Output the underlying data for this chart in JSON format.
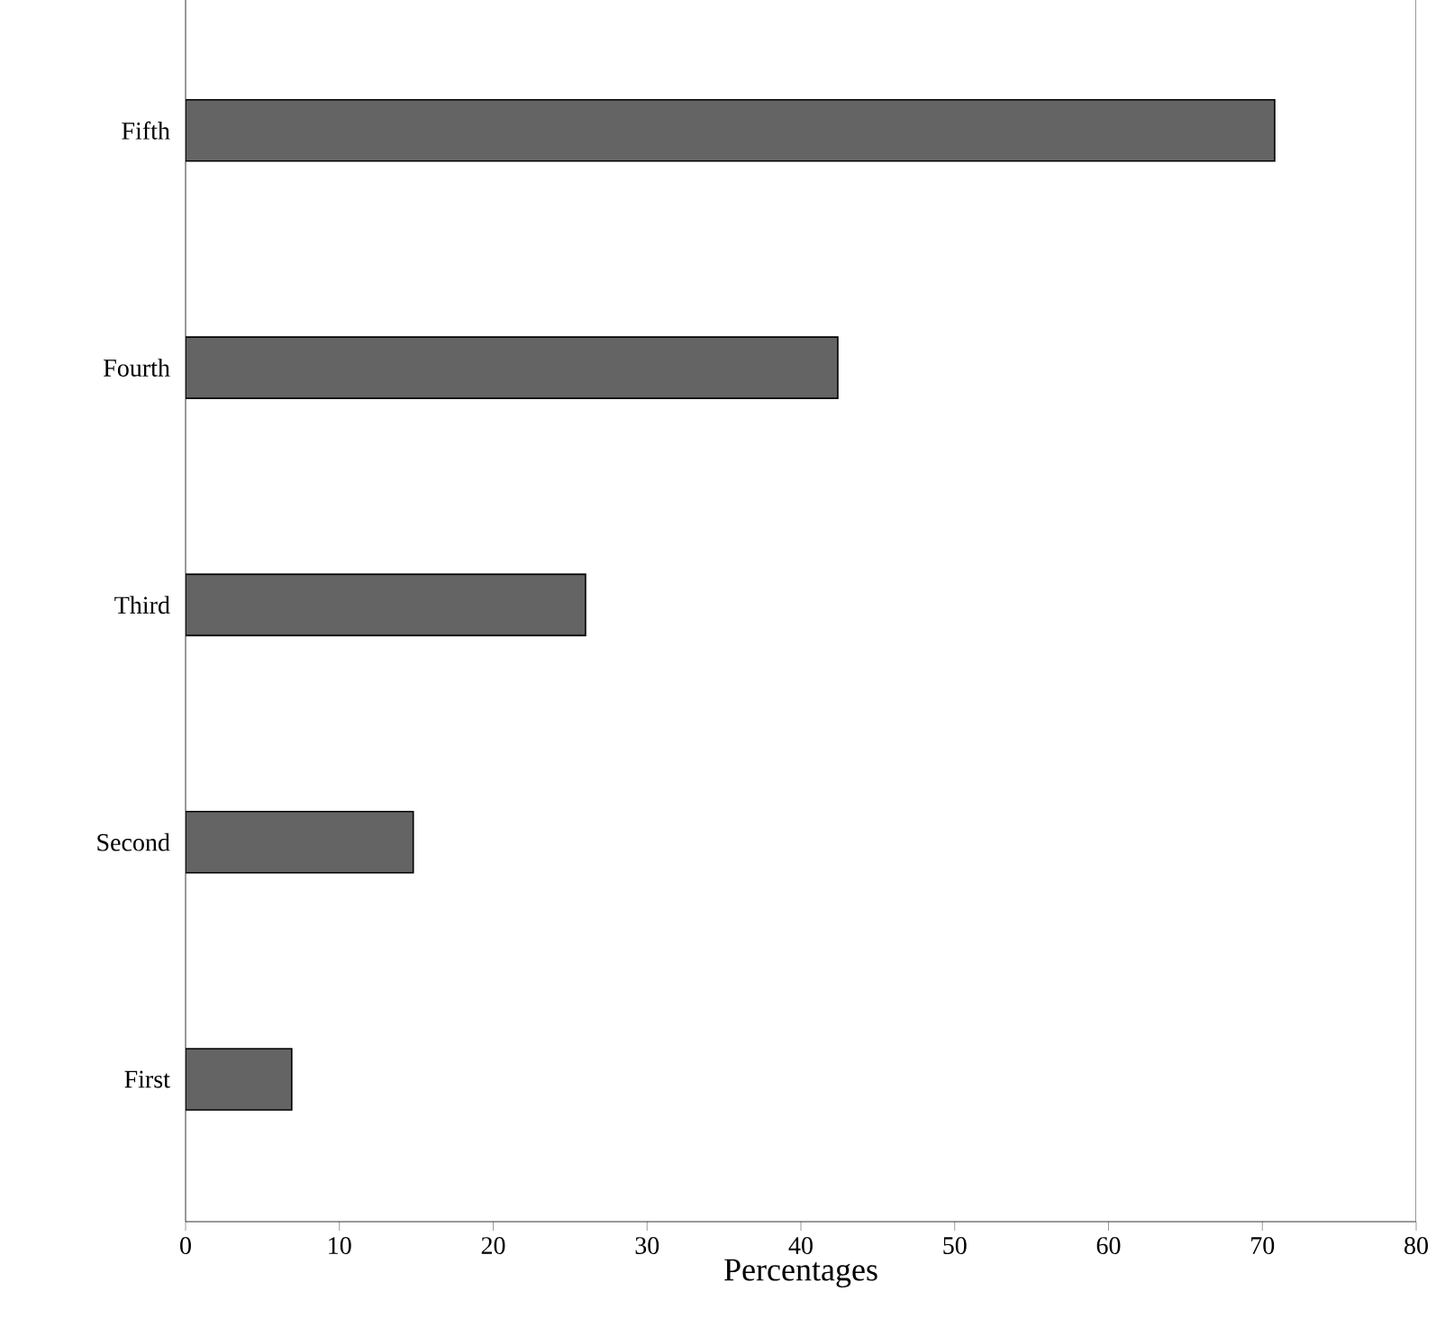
{
  "chart_data": {
    "type": "bar",
    "orientation": "horizontal",
    "xlabel": "Percentages",
    "categories": [
      "Fifth",
      "Fourth",
      "Third",
      "Second",
      "First"
    ],
    "values": [
      70.8,
      42.4,
      26,
      14.8,
      6.9
    ],
    "color": "#646464",
    "xlim": [
      0,
      80
    ],
    "xticks": [
      0,
      10,
      20,
      30,
      40,
      50,
      60,
      70,
      80
    ],
    "grid": false
  }
}
